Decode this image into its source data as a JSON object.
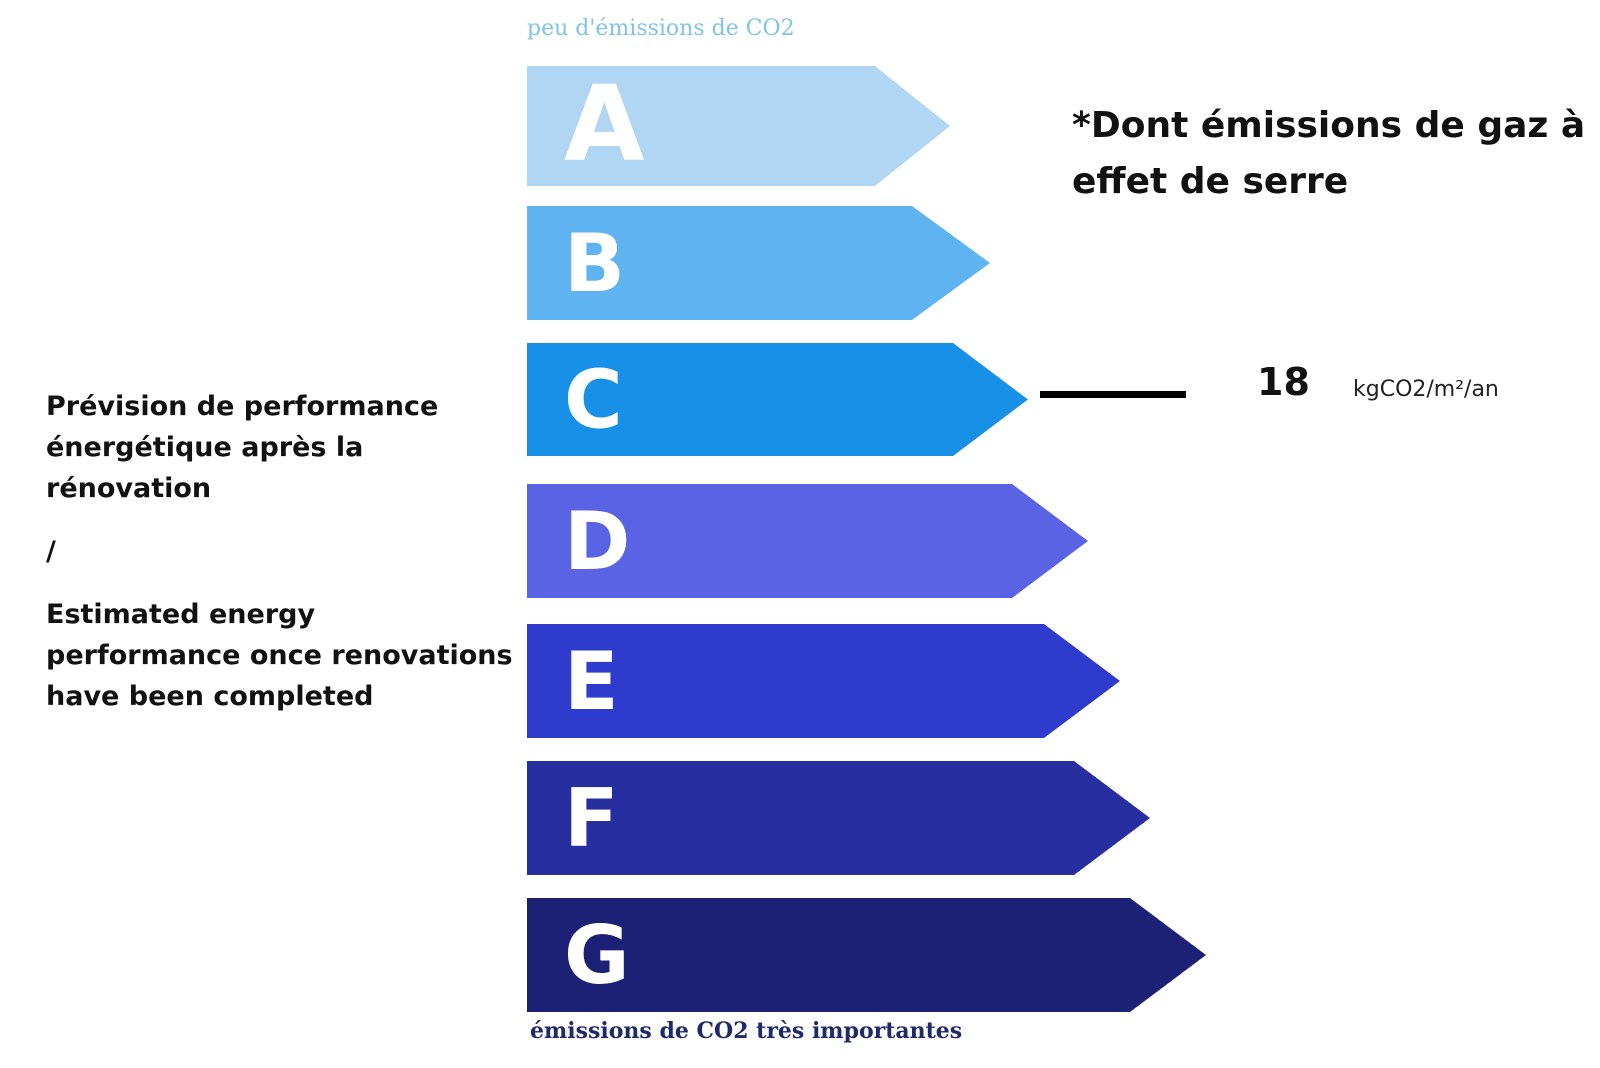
{
  "top_caption": "peu d'émissions de CO2",
  "bottom_caption": "émissions de CO2 très importantes",
  "left_text": {
    "fr": "Prévision de performance énergétique après la rénovation",
    "separator": "/",
    "en": "Estimated energy performance once renovations have been completed"
  },
  "right_title": "*Dont émissions de gaz à effet de serre",
  "indicator": {
    "value": "18",
    "unit": "kgCO2/m²/an",
    "class": "C"
  },
  "classes": [
    {
      "letter": "A",
      "color": "#b0d6f4"
    },
    {
      "letter": "B",
      "color": "#5fb3f0"
    },
    {
      "letter": "C",
      "color": "#1890e8"
    },
    {
      "letter": "D",
      "color": "#5a63e4"
    },
    {
      "letter": "E",
      "color": "#2f3bcc"
    },
    {
      "letter": "F",
      "color": "#272fa0"
    },
    {
      "letter": "G",
      "color": "#1c2175"
    }
  ]
}
